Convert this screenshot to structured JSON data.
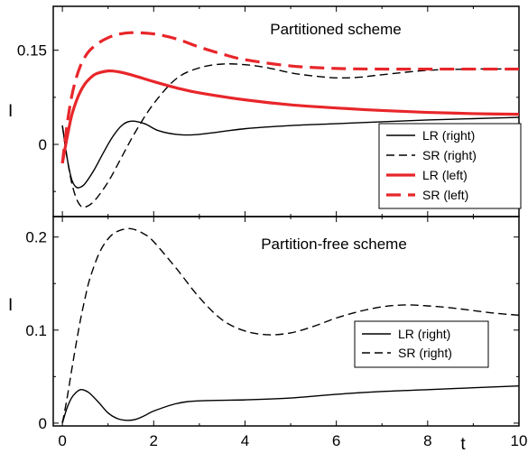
{
  "chart_data": [
    {
      "type": "line",
      "title": "Partitioned scheme",
      "xlabel": "",
      "ylabel": "I",
      "xlim": [
        -0.2,
        10
      ],
      "ylim": [
        -0.115,
        0.22
      ],
      "yticks": [
        0,
        0.15
      ],
      "yticklabels": [
        "0",
        "0.15"
      ],
      "grid": false,
      "legend_position": "bottom-right",
      "series": [
        {
          "name": "LR (right)",
          "color": "#000000",
          "dash": "solid",
          "width": "thin",
          "x": [
            0,
            0.1,
            0.2,
            0.3,
            0.4,
            0.5,
            0.7,
            0.9,
            1.1,
            1.3,
            1.5,
            1.8,
            2.1,
            2.5,
            3,
            4,
            5,
            6,
            7,
            8,
            9,
            10
          ],
          "y": [
            0.03,
            -0.02,
            -0.055,
            -0.068,
            -0.068,
            -0.062,
            -0.04,
            -0.013,
            0.012,
            0.03,
            0.037,
            0.033,
            0.022,
            0.016,
            0.016,
            0.025,
            0.03,
            0.033,
            0.036,
            0.039,
            0.041,
            0.043
          ]
        },
        {
          "name": "SR (right)",
          "color": "#000000",
          "dash": "dashed",
          "width": "thin",
          "x": [
            0,
            0.1,
            0.2,
            0.3,
            0.4,
            0.5,
            0.7,
            1.0,
            1.3,
            1.6,
            2.0,
            2.5,
            3.0,
            3.5,
            4.0,
            4.5,
            5.0,
            5.5,
            6.0,
            6.5,
            7.0,
            8.0,
            9.0,
            10.0
          ],
          "y": [
            0.03,
            -0.02,
            -0.06,
            -0.085,
            -0.098,
            -0.1,
            -0.09,
            -0.06,
            -0.02,
            0.02,
            0.065,
            0.105,
            0.122,
            0.128,
            0.127,
            0.122,
            0.114,
            0.109,
            0.106,
            0.107,
            0.111,
            0.118,
            0.12,
            0.12
          ]
        },
        {
          "name": "LR (left)",
          "color": "#e8262a",
          "dash": "solid",
          "width": "thick",
          "x": [
            0,
            0.1,
            0.2,
            0.3,
            0.4,
            0.5,
            0.6,
            0.7,
            0.8,
            1.0,
            1.2,
            1.5,
            2.0,
            2.5,
            3,
            4,
            5,
            6,
            7,
            8,
            9,
            10
          ],
          "y": [
            -0.03,
            0.01,
            0.045,
            0.068,
            0.085,
            0.097,
            0.105,
            0.111,
            0.114,
            0.117,
            0.116,
            0.111,
            0.1,
            0.09,
            0.082,
            0.071,
            0.063,
            0.058,
            0.054,
            0.051,
            0.049,
            0.048
          ]
        },
        {
          "name": "SR (left)",
          "color": "#e8262a",
          "dash": "dashed",
          "width": "thick",
          "x": [
            0,
            0.1,
            0.2,
            0.3,
            0.4,
            0.5,
            0.6,
            0.8,
            1.0,
            1.2,
            1.5,
            2.0,
            2.5,
            3.0,
            3.5,
            4.0,
            5.0,
            6.0,
            7.0,
            8.0,
            9.0,
            10.0
          ],
          "y": [
            -0.03,
            0.03,
            0.075,
            0.105,
            0.126,
            0.14,
            0.15,
            0.162,
            0.17,
            0.175,
            0.178,
            0.176,
            0.168,
            0.155,
            0.144,
            0.135,
            0.125,
            0.121,
            0.12,
            0.12,
            0.12,
            0.12
          ]
        }
      ]
    },
    {
      "type": "line",
      "title": "Partition-free scheme",
      "xlabel": "t",
      "ylabel": "I",
      "xlim": [
        -0.2,
        10
      ],
      "ylim": [
        -0.003,
        0.222
      ],
      "xticks": [
        0,
        2,
        4,
        6,
        8,
        10
      ],
      "xticklabels": [
        "0",
        "2",
        "4",
        "6",
        "8",
        "10"
      ],
      "yticks": [
        0,
        0.1,
        0.2
      ],
      "yticklabels": [
        "0",
        "0.1",
        "0.2"
      ],
      "grid": false,
      "legend_position": "center-right",
      "series": [
        {
          "name": "LR (right)",
          "color": "#000000",
          "dash": "solid",
          "width": "thin",
          "x": [
            0,
            0.1,
            0.2,
            0.3,
            0.4,
            0.5,
            0.6,
            0.8,
            1.0,
            1.2,
            1.4,
            1.6,
            1.8,
            2.0,
            2.5,
            3,
            4,
            5,
            6,
            7,
            8,
            9,
            10
          ],
          "y": [
            0,
            0.016,
            0.027,
            0.033,
            0.036,
            0.035,
            0.032,
            0.022,
            0.011,
            0.005,
            0.003,
            0.004,
            0.008,
            0.013,
            0.021,
            0.024,
            0.025,
            0.027,
            0.031,
            0.034,
            0.036,
            0.038,
            0.04
          ]
        },
        {
          "name": "SR (right)",
          "color": "#000000",
          "dash": "dashed",
          "width": "thin",
          "x": [
            0,
            0.1,
            0.2,
            0.3,
            0.4,
            0.5,
            0.6,
            0.8,
            1.0,
            1.2,
            1.5,
            1.8,
            2.0,
            2.5,
            3.0,
            3.5,
            4.0,
            4.5,
            5.0,
            5.5,
            6.0,
            6.5,
            7.0,
            7.5,
            8.0,
            8.5,
            9.0,
            9.5,
            10.0
          ],
          "y": [
            0,
            0.026,
            0.056,
            0.085,
            0.112,
            0.135,
            0.155,
            0.182,
            0.198,
            0.206,
            0.209,
            0.203,
            0.195,
            0.166,
            0.135,
            0.111,
            0.099,
            0.095,
            0.097,
            0.104,
            0.113,
            0.12,
            0.125,
            0.127,
            0.126,
            0.124,
            0.121,
            0.118,
            0.116
          ]
        }
      ]
    }
  ]
}
